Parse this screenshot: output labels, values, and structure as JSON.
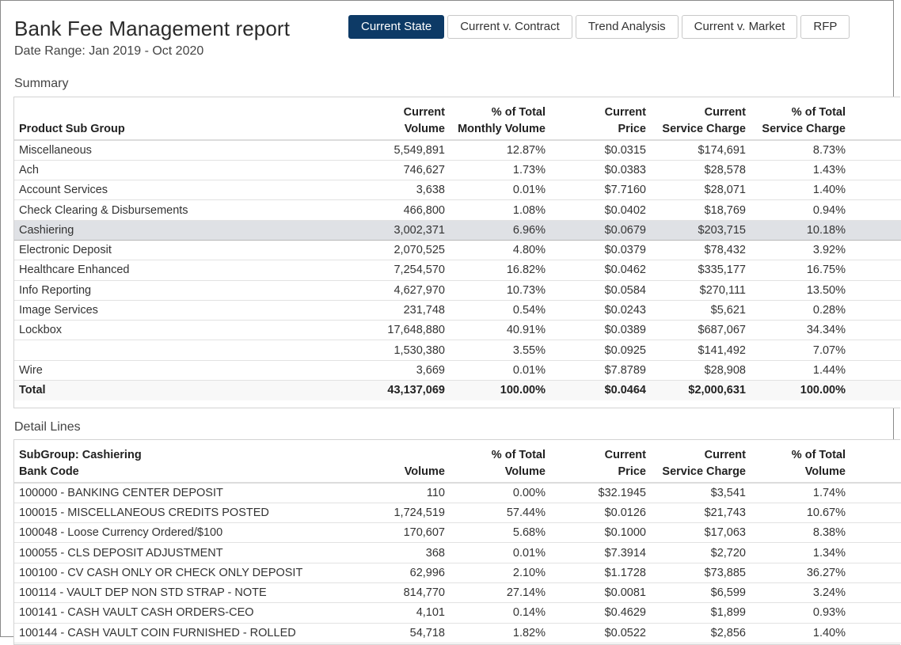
{
  "header": {
    "title": "Bank Fee Management report",
    "date_range": "Date Range: Jan 2019 - Oct 2020"
  },
  "tabs": [
    {
      "label": "Current State",
      "active": true
    },
    {
      "label": "Current v. Contract",
      "active": false
    },
    {
      "label": "Trend Analysis",
      "active": false
    },
    {
      "label": "Current v. Market",
      "active": false
    },
    {
      "label": "RFP",
      "active": false
    }
  ],
  "summary": {
    "section_label": "Summary",
    "columns": [
      {
        "top": "",
        "bottom": "Product Sub Group"
      },
      {
        "top": "Current",
        "bottom": "Volume"
      },
      {
        "top": "% of Total",
        "bottom": "Monthly Volume"
      },
      {
        "top": "Current",
        "bottom": "Price"
      },
      {
        "top": "Current",
        "bottom": "Service Charge"
      },
      {
        "top": "% of Total",
        "bottom": "Service Charge"
      }
    ],
    "rows": [
      [
        "Miscellaneous",
        "5,549,891",
        "12.87%",
        "$0.0315",
        "$174,691",
        "8.73%"
      ],
      [
        "Ach",
        "746,627",
        "1.73%",
        "$0.0383",
        "$28,578",
        "1.43%"
      ],
      [
        "Account Services",
        "3,638",
        "0.01%",
        "$7.7160",
        "$28,071",
        "1.40%"
      ],
      [
        "Check Clearing & Disbursements",
        "466,800",
        "1.08%",
        "$0.0402",
        "$18,769",
        "0.94%"
      ],
      [
        "Cashiering",
        "3,002,371",
        "6.96%",
        "$0.0679",
        "$203,715",
        "10.18%"
      ],
      [
        "Electronic Deposit",
        "2,070,525",
        "4.80%",
        "$0.0379",
        "$78,432",
        "3.92%"
      ],
      [
        "Healthcare Enhanced",
        "7,254,570",
        "16.82%",
        "$0.0462",
        "$335,177",
        "16.75%"
      ],
      [
        "Info Reporting",
        "4,627,970",
        "10.73%",
        "$0.0584",
        "$270,111",
        "13.50%"
      ],
      [
        "Image Services",
        "231,748",
        "0.54%",
        "$0.0243",
        "$5,621",
        "0.28%"
      ],
      [
        "Lockbox",
        "17,648,880",
        "40.91%",
        "$0.0389",
        "$687,067",
        "34.34%"
      ],
      [
        "",
        "1,530,380",
        "3.55%",
        "$0.0925",
        "$141,492",
        "7.07%"
      ],
      [
        "Wire",
        "3,669",
        "0.01%",
        "$7.8789",
        "$28,908",
        "1.44%"
      ]
    ],
    "selected_row": "Cashiering",
    "total": [
      "Total",
      "43,137,069",
      "100.00%",
      "$0.0464",
      "$2,000,631",
      "100.00%"
    ]
  },
  "detail": {
    "section_label": "Detail Lines",
    "columns": [
      {
        "top": "SubGroup: Cashiering",
        "bottom": "Bank Code"
      },
      {
        "top": "",
        "bottom": "Volume"
      },
      {
        "top": "% of Total",
        "bottom": "Volume"
      },
      {
        "top": "Current",
        "bottom": "Price"
      },
      {
        "top": "Current",
        "bottom": "Service Charge"
      },
      {
        "top": "% of Total",
        "bottom": "Volume"
      }
    ],
    "rows": [
      [
        "100000 - BANKING CENTER DEPOSIT",
        "110",
        "0.00%",
        "$32.1945",
        "$3,541",
        "1.74%"
      ],
      [
        "100015 - MISCELLANEOUS CREDITS POSTED",
        "1,724,519",
        "57.44%",
        "$0.0126",
        "$21,743",
        "10.67%"
      ],
      [
        "100048 - Loose Currency Ordered/$100",
        "170,607",
        "5.68%",
        "$0.1000",
        "$17,063",
        "8.38%"
      ],
      [
        "100055 - CLS DEPOSIT ADJUSTMENT",
        "368",
        "0.01%",
        "$7.3914",
        "$2,720",
        "1.34%"
      ],
      [
        "100100 - CV CASH ONLY OR CHECK ONLY DEPOSIT",
        "62,996",
        "2.10%",
        "$1.1728",
        "$73,885",
        "36.27%"
      ],
      [
        "100114 - VAULT DEP NON STD STRAP - NOTE",
        "814,770",
        "27.14%",
        "$0.0081",
        "$6,599",
        "3.24%"
      ],
      [
        "100141 - CASH VAULT CASH ORDERS-CEO",
        "4,101",
        "0.14%",
        "$0.4629",
        "$1,899",
        "0.93%"
      ],
      [
        "100144 - CASH VAULT COIN FURNISHED - ROLLED",
        "54,718",
        "1.82%",
        "$0.0522",
        "$2,856",
        "1.40%"
      ]
    ]
  }
}
